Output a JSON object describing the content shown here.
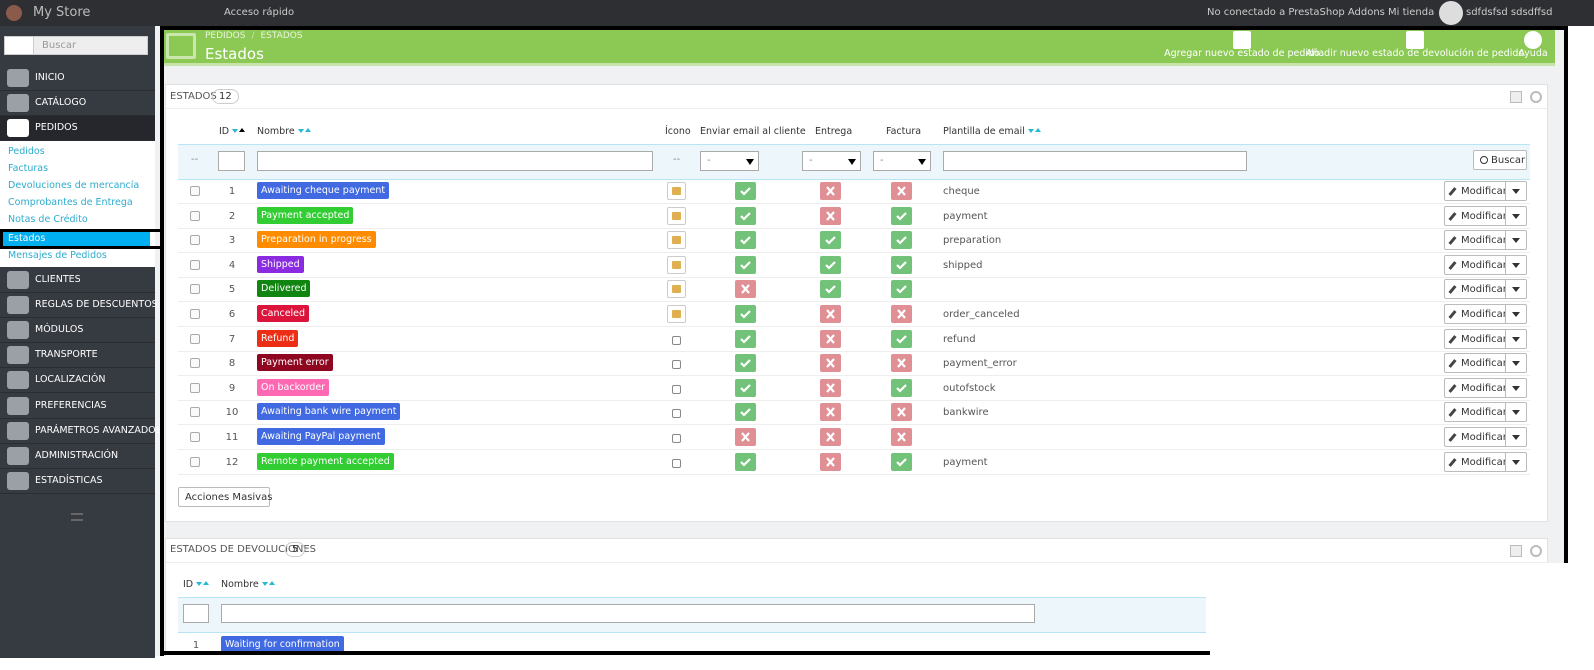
{
  "topbar": {
    "brand": "My Store",
    "quick_access": "Acceso rápido",
    "addons": "No conectado a PrestaShop Addons",
    "shop": "Mi tienda",
    "user": "sdfdsfsd sdsdffsd"
  },
  "sidebar": {
    "search_placeholder": "Buscar",
    "menu_top": [
      "INICIO",
      "CATÁLOGO",
      "PEDIDOS"
    ],
    "menu_top_active": 2,
    "submenu": [
      "Pedidos",
      "Facturas",
      "Devoluciones de mercancía",
      "Comprobantes de Entrega",
      "Notas de Crédito",
      "Estados",
      "Mensajes de Pedidos"
    ],
    "submenu_active": 5,
    "menu_bottom": [
      "CLIENTES",
      "REGLAS DE DESCUENTOS",
      "MÓDULOS",
      "TRANSPORTE",
      "LOCALIZACIÓN",
      "PREFERENCIAS",
      "PARÁMETROS AVANZADOS",
      "ADMINISTRACIÓN",
      "ESTADÍSTICAS"
    ]
  },
  "page_header": {
    "breadcrumb": [
      "PEDIDOS",
      "ESTADOS"
    ],
    "breadcrumb_separator": "/",
    "title": "Estados",
    "toolbar": [
      "Agregar nuevo estado de pedido",
      "Añadir nuevo estado de devolución de pedido",
      "Ayuda"
    ]
  },
  "order_states": {
    "title": "ESTADOS",
    "count": 12,
    "columns": [
      "ID",
      "Nombre",
      "Ícono",
      "Enviar email al cliente",
      "Entrega",
      "Factura",
      "Plantilla de email"
    ],
    "filter_none": "--",
    "select_any": "-",
    "filter_search": "Buscar",
    "row_action": "Modificar",
    "bulk_actions": "Acciones Masivas",
    "rows": [
      {
        "id": 1,
        "name": "Awaiting cheque payment",
        "color": "#4169e1",
        "icon": true,
        "send_email": true,
        "delivery": false,
        "invoice": false,
        "template": "cheque"
      },
      {
        "id": 2,
        "name": "Payment accepted",
        "color": "#32cd32",
        "icon": true,
        "send_email": true,
        "delivery": false,
        "invoice": true,
        "template": "payment"
      },
      {
        "id": 3,
        "name": "Preparation in progress",
        "color": "#ff8c00",
        "icon": true,
        "send_email": true,
        "delivery": true,
        "invoice": true,
        "template": "preparation"
      },
      {
        "id": 4,
        "name": "Shipped",
        "color": "#8a2be2",
        "icon": true,
        "send_email": true,
        "delivery": true,
        "invoice": true,
        "template": "shipped"
      },
      {
        "id": 5,
        "name": "Delivered",
        "color": "#108510",
        "icon": true,
        "send_email": false,
        "delivery": true,
        "invoice": true,
        "template": null
      },
      {
        "id": 6,
        "name": "Canceled",
        "color": "#dc143c",
        "icon": true,
        "send_email": true,
        "delivery": false,
        "invoice": false,
        "template": "order_canceled"
      },
      {
        "id": 7,
        "name": "Refund",
        "color": "#ec2e15",
        "icon": false,
        "send_email": true,
        "delivery": false,
        "invoice": true,
        "template": "refund"
      },
      {
        "id": 8,
        "name": "Payment error",
        "color": "#8f0621",
        "icon": false,
        "send_email": true,
        "delivery": false,
        "invoice": false,
        "template": "payment_error"
      },
      {
        "id": 9,
        "name": "On backorder",
        "color": "#ff69b4",
        "icon": false,
        "send_email": true,
        "delivery": false,
        "invoice": true,
        "template": "outofstock"
      },
      {
        "id": 10,
        "name": "Awaiting bank wire payment",
        "color": "#4169e1",
        "icon": false,
        "send_email": true,
        "delivery": false,
        "invoice": false,
        "template": "bankwire"
      },
      {
        "id": 11,
        "name": "Awaiting PayPal payment",
        "color": "#4169e1",
        "icon": false,
        "send_email": false,
        "delivery": false,
        "invoice": false,
        "template": null
      },
      {
        "id": 12,
        "name": "Remote payment accepted",
        "color": "#32cd32",
        "icon": false,
        "send_email": true,
        "delivery": false,
        "invoice": true,
        "template": "payment"
      }
    ]
  },
  "return_states": {
    "title": "ESTADOS DE DEVOLUCIONES",
    "count": 5,
    "columns": [
      "ID",
      "Nombre"
    ],
    "rows": [
      {
        "id": 1,
        "name": "Waiting for confirmation",
        "color": "#4169e1"
      }
    ]
  }
}
